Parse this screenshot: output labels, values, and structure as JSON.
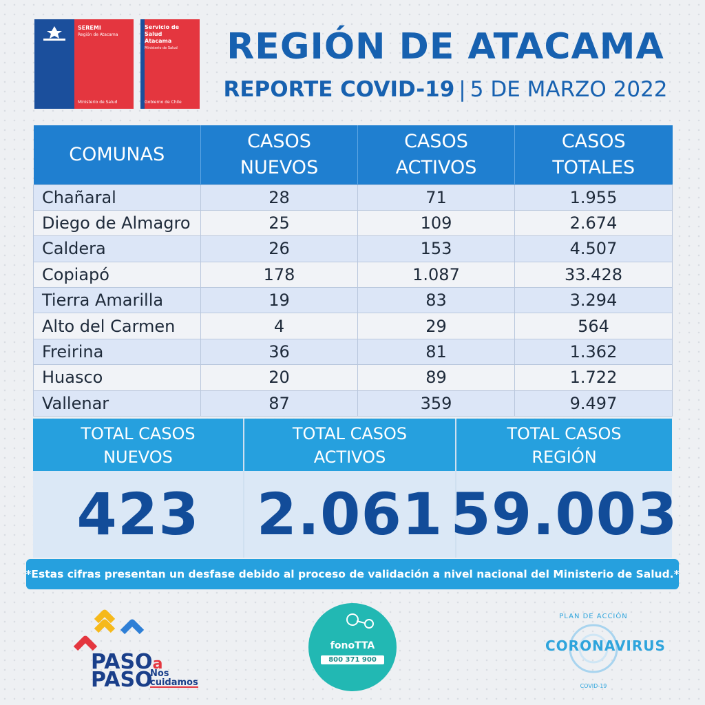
{
  "logos": {
    "seremi": {
      "title": "SEREMI",
      "region": "Región de Atacama",
      "ministry": "Ministerio de Salud"
    },
    "servicio": {
      "title": "Servicio de Salud Atacama",
      "ministry": "Ministerio de Salud",
      "gov": "Gobierno de Chile"
    }
  },
  "header": {
    "title": "REGIÓN DE ATACAMA",
    "report": "REPORTE COVID-19",
    "separator": "|",
    "date": "5 DE MARZO 2022"
  },
  "table": {
    "headers": [
      "COMUNAS",
      "CASOS NUEVOS",
      "CASOS ACTIVOS",
      "CASOS TOTALES"
    ],
    "rows": [
      [
        "Chañaral",
        "28",
        "71",
        "1.955"
      ],
      [
        "Diego de Almagro",
        "25",
        "109",
        "2.674"
      ],
      [
        "Caldera",
        "26",
        "153",
        "4.507"
      ],
      [
        "Copiapó",
        "178",
        "1.087",
        "33.428"
      ],
      [
        "Tierra Amarilla",
        "19",
        "83",
        "3.294"
      ],
      [
        "Alto del Carmen",
        "4",
        "29",
        "564"
      ],
      [
        "Freirina",
        "36",
        "81",
        "1.362"
      ],
      [
        "Huasco",
        "20",
        "89",
        "1.722"
      ],
      [
        "Vallenar",
        "87",
        "359",
        "9.497"
      ]
    ]
  },
  "totals": [
    {
      "label_1": "TOTAL CASOS",
      "label_2": "NUEVOS",
      "value": "423"
    },
    {
      "label_1": "TOTAL CASOS",
      "label_2": "ACTIVOS",
      "value": "2.061"
    },
    {
      "label_1": "TOTAL CASOS",
      "label_2": "REGIÓN",
      "value": "59.003"
    }
  ],
  "note": "*Estas cifras presentan un desfase debido al proceso de validación a nivel nacional del Ministerio de Salud.*",
  "footer": {
    "paso": {
      "line1": "PASO",
      "a": "a",
      "line2": "PASO",
      "nos1": "Nos",
      "nos2": "cuidamos"
    },
    "fono": {
      "name": "fonoTTA",
      "number": "800 371 900"
    },
    "corona": {
      "plan": "PLAN DE ACCIÓN",
      "word": "CORONAVIRUS",
      "covid": "COVID-19"
    }
  },
  "colors": {
    "title_blue": "#1761b0",
    "header_blue": "#1f7fd0",
    "totals_blue": "#26a0de",
    "value_blue": "#124c99",
    "chile_red": "#e4363f",
    "fono_teal": "#22b8b3"
  }
}
